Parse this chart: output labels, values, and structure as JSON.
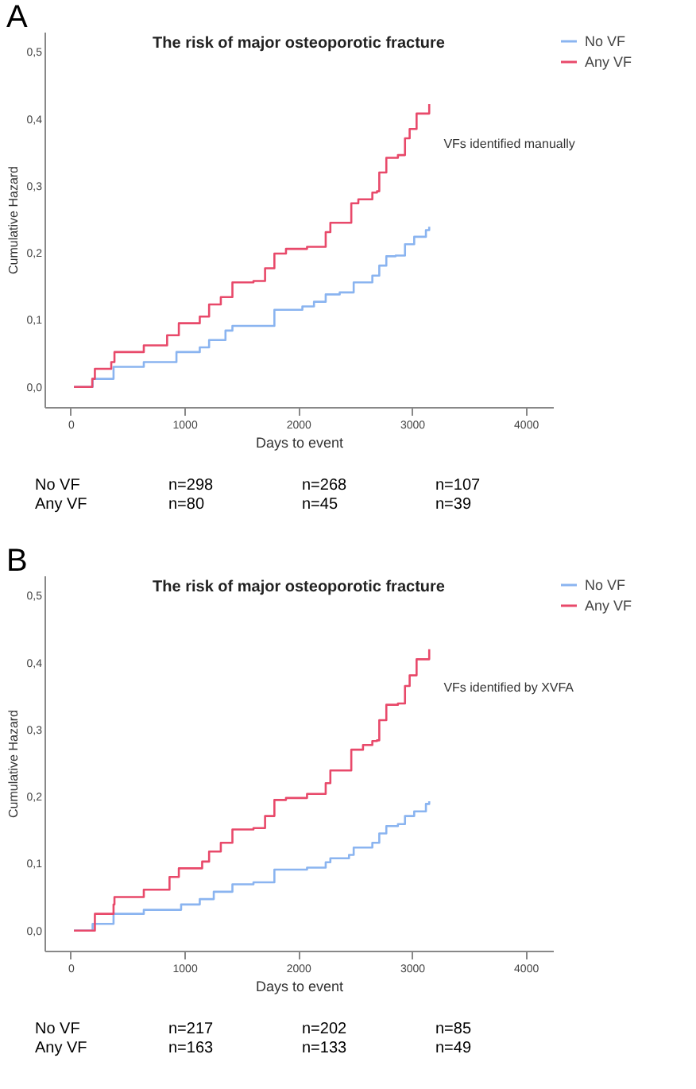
{
  "chart_data": [
    {
      "type": "step",
      "title": "The risk of major osteoporotic fracture",
      "xlabel": "Days to event",
      "ylabel": "Cumulative Hazard",
      "annotations": [
        "A",
        "VFs identified manually",
        "No VF",
        "n=298",
        "n=268",
        "n=107",
        "Any VF",
        "n=80",
        "n=45",
        "n=39"
      ],
      "xlim": [
        -230,
        4240
      ],
      "xticks": [
        0,
        1000,
        2000,
        3000,
        4000
      ],
      "ylim": [
        -0.03,
        0.53
      ],
      "yticks": [
        {
          "value": 0,
          "label": "0,0"
        },
        {
          "value": 0.1,
          "label": "0,1"
        },
        {
          "value": 0.2,
          "label": "0,2"
        },
        {
          "value": 0.3,
          "label": "0,3"
        },
        {
          "value": 0.4,
          "label": "0,4"
        },
        {
          "value": 0.5,
          "label": "0,5"
        }
      ],
      "grid": false,
      "legend": "top right",
      "line_style": "solid",
      "series": [
        {
          "name": "No VF",
          "color": "#8ab4f0",
          "x": [
            29,
            193,
            377,
            643,
            930,
            1135,
            1217,
            1361,
            1422,
            1607,
            1791,
            2037,
            2139,
            2242,
            2365,
            2488,
            2652,
            2693,
            2713,
            2775,
            2857,
            2939,
            3020,
            3123,
            3152
          ],
          "values": [
            0,
            0.012,
            0.03,
            0.037,
            0.052,
            0.059,
            0.07,
            0.084,
            0.091,
            0.091,
            0.115,
            0.12,
            0.127,
            0.138,
            0.141,
            0.156,
            0.166,
            0.166,
            0.181,
            0.195,
            0.196,
            0.213,
            0.224,
            0.234,
            0.239
          ]
        },
        {
          "name": "Any VF",
          "color": "#e8496a",
          "x": [
            29,
            190,
            213,
            357,
            385,
            643,
            848,
            951,
            1053,
            1135,
            1217,
            1320,
            1422,
            1607,
            1709,
            1791,
            1893,
            2078,
            2242,
            2283,
            2365,
            2467,
            2529,
            2652,
            2693,
            2713,
            2775,
            2877,
            2939,
            2980,
            3041,
            3143,
            3152
          ],
          "values": [
            0,
            0.012,
            0.027,
            0.037,
            0.052,
            0.062,
            0.077,
            0.095,
            0.095,
            0.105,
            0.123,
            0.134,
            0.156,
            0.158,
            0.177,
            0.199,
            0.206,
            0.209,
            0.231,
            0.245,
            0.245,
            0.274,
            0.28,
            0.29,
            0.292,
            0.32,
            0.342,
            0.346,
            0.371,
            0.385,
            0.408,
            0.408,
            0.422
          ]
        }
      ]
    },
    {
      "type": "step",
      "title": "The risk of major osteoporotic fracture",
      "xlabel": "Days to event",
      "ylabel": "Cumulative Hazard",
      "annotations": [
        "B",
        "VFs identified by XVFA",
        "No VF",
        "n=217",
        "n=202",
        "n=85",
        "Any VF",
        "n=163",
        "n=133",
        "n=49"
      ],
      "xlim": [
        -230,
        4240
      ],
      "xticks": [
        0,
        1000,
        2000,
        3000,
        4000
      ],
      "ylim": [
        -0.03,
        0.53
      ],
      "yticks": [
        {
          "value": 0,
          "label": "0,0"
        },
        {
          "value": 0.1,
          "label": "0,1"
        },
        {
          "value": 0.2,
          "label": "0,2"
        },
        {
          "value": 0.3,
          "label": "0,3"
        },
        {
          "value": 0.4,
          "label": "0,4"
        },
        {
          "value": 0.5,
          "label": "0,5"
        }
      ],
      "grid": false,
      "legend": "top right",
      "line_style": "solid",
      "series": [
        {
          "name": "No VF",
          "color": "#8ab4f0",
          "x": [
            29,
            193,
            377,
            643,
            971,
            1135,
            1258,
            1422,
            1607,
            1791,
            2078,
            2242,
            2283,
            2447,
            2488,
            2652,
            2693,
            2713,
            2775,
            2877,
            2939,
            3020,
            3123,
            3152
          ],
          "values": [
            0,
            0.01,
            0.025,
            0.031,
            0.039,
            0.047,
            0.058,
            0.069,
            0.072,
            0.091,
            0.094,
            0.102,
            0.108,
            0.113,
            0.124,
            0.131,
            0.131,
            0.145,
            0.156,
            0.159,
            0.171,
            0.178,
            0.189,
            0.193
          ]
        },
        {
          "name": "Any VF",
          "color": "#e8496a",
          "x": [
            29,
            213,
            377,
            385,
            643,
            869,
            951,
            1053,
            1156,
            1217,
            1320,
            1422,
            1607,
            1709,
            1791,
            1893,
            2078,
            2242,
            2283,
            2365,
            2467,
            2570,
            2652,
            2693,
            2713,
            2775,
            2877,
            2939,
            2980,
            3041,
            3143,
            3152
          ],
          "values": [
            0,
            0.025,
            0.039,
            0.05,
            0.061,
            0.08,
            0.093,
            0.093,
            0.103,
            0.118,
            0.131,
            0.151,
            0.153,
            0.171,
            0.195,
            0.198,
            0.204,
            0.22,
            0.239,
            0.239,
            0.27,
            0.277,
            0.283,
            0.284,
            0.314,
            0.337,
            0.339,
            0.365,
            0.381,
            0.405,
            0.405,
            0.42
          ]
        }
      ]
    }
  ]
}
